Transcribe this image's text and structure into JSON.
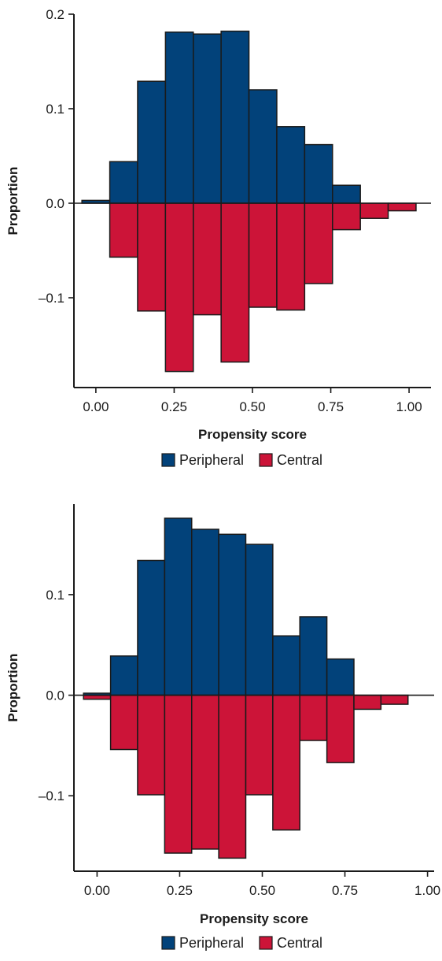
{
  "colors": {
    "peripheral": "#02427a",
    "central": "#cc1438",
    "axis": "#1a1a1a"
  },
  "chart_data": [
    {
      "type": "bar",
      "title": "",
      "xlabel": "Propensity score",
      "ylabel": "Proportion",
      "xlim": [
        -0.07,
        1.07
      ],
      "ylim": [
        -0.195,
        0.2
      ],
      "yticks": [
        -0.1,
        0.0,
        0.1,
        0.2
      ],
      "ytick_labels": [
        "–0.1",
        "0.0",
        "0.1",
        "0.2"
      ],
      "xticks": [
        0.0,
        0.25,
        0.5,
        0.75,
        1.0
      ],
      "xtick_labels": [
        "0.00",
        "0.25",
        "0.50",
        "0.75",
        "1.00"
      ],
      "bin_width": 0.0889,
      "bin_centers": [
        0.0,
        0.0889,
        0.1778,
        0.2667,
        0.3556,
        0.4444,
        0.5333,
        0.6222,
        0.7111,
        0.8,
        0.8889,
        0.9778
      ],
      "legend": {
        "position": "bottom",
        "entries": [
          "Peripheral",
          "Central"
        ]
      },
      "series": [
        {
          "name": "Peripheral",
          "values": [
            0.003,
            0.044,
            0.129,
            0.181,
            0.179,
            0.182,
            0.12,
            0.081,
            0.062,
            0.019,
            0.0,
            0.0
          ]
        },
        {
          "name": "Central",
          "values": [
            0.0,
            -0.057,
            -0.114,
            -0.178,
            -0.118,
            -0.168,
            -0.11,
            -0.113,
            -0.085,
            -0.028,
            -0.016,
            -0.008
          ]
        }
      ]
    },
    {
      "type": "bar",
      "title": "",
      "xlabel": "Propensity score",
      "ylabel": "Proportion",
      "xlim": [
        -0.07,
        1.02
      ],
      "ylim": [
        -0.175,
        0.19
      ],
      "yticks": [
        -0.1,
        0.0,
        0.1
      ],
      "ytick_labels": [
        "–0.1",
        "0.0",
        "0.1"
      ],
      "xticks": [
        0.0,
        0.25,
        0.5,
        0.75,
        1.0
      ],
      "xtick_labels": [
        "0.00",
        "0.25",
        "0.50",
        "0.75",
        "1.00"
      ],
      "bin_width": 0.0818,
      "bin_centers": [
        0.0,
        0.0818,
        0.1636,
        0.2455,
        0.3273,
        0.4091,
        0.4909,
        0.5727,
        0.6545,
        0.7364,
        0.8182,
        0.9
      ],
      "legend": {
        "position": "bottom",
        "entries": [
          "Peripheral",
          "Central"
        ]
      },
      "series": [
        {
          "name": "Peripheral",
          "values": [
            0.002,
            0.039,
            0.134,
            0.176,
            0.165,
            0.16,
            0.15,
            0.059,
            0.078,
            0.036,
            0.0,
            0.0
          ]
        },
        {
          "name": "Central",
          "values": [
            -0.004,
            -0.054,
            -0.099,
            -0.157,
            -0.153,
            -0.162,
            -0.099,
            -0.134,
            -0.045,
            -0.067,
            -0.014,
            -0.009
          ]
        }
      ]
    }
  ]
}
